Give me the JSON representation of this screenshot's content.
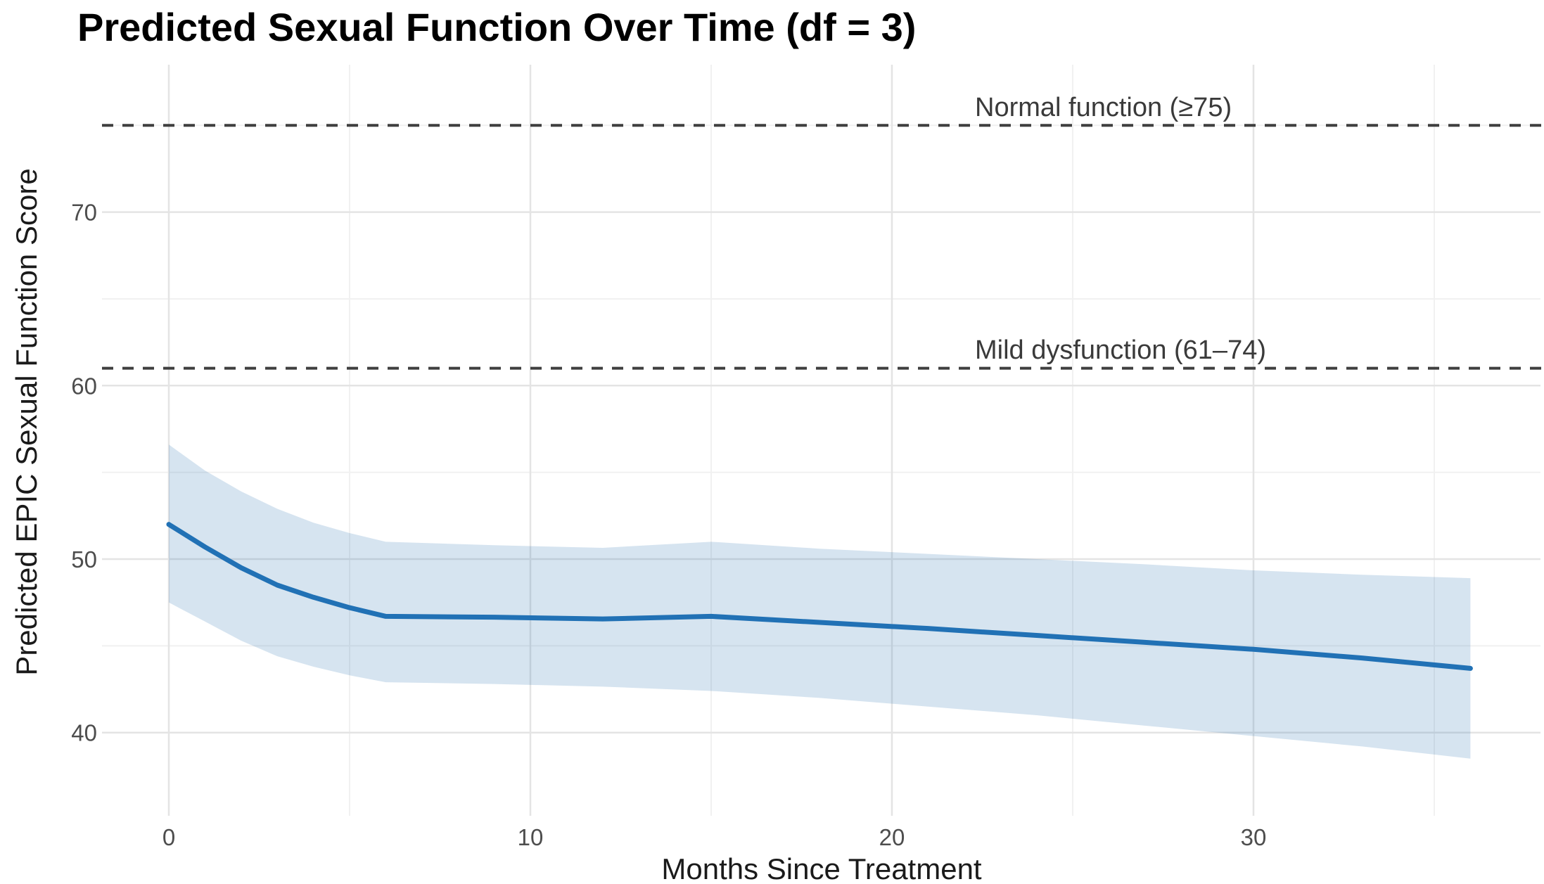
{
  "chart_data": {
    "type": "line",
    "title": "Predicted Sexual Function Over Time (df = 3)",
    "xlabel": "Months Since Treatment",
    "ylabel": "Predicted EPIC Sexual Function Score",
    "x": [
      0,
      1,
      2,
      3,
      4,
      5,
      6,
      9,
      12,
      15,
      18,
      21,
      24,
      27,
      30,
      33,
      36
    ],
    "series": [
      {
        "name": "predicted_score",
        "values": [
          52.0,
          50.7,
          49.5,
          48.5,
          47.8,
          47.2,
          46.7,
          46.65,
          46.55,
          46.7,
          46.35,
          46.0,
          45.6,
          45.2,
          44.8,
          44.3,
          43.7
        ]
      },
      {
        "name": "ci_lower",
        "values": [
          47.5,
          46.4,
          45.3,
          44.4,
          43.8,
          43.3,
          42.9,
          42.8,
          42.65,
          42.4,
          42.0,
          41.5,
          41.0,
          40.4,
          39.8,
          39.2,
          38.5
        ]
      },
      {
        "name": "ci_upper",
        "values": [
          56.6,
          55.1,
          53.9,
          52.9,
          52.1,
          51.5,
          51.0,
          50.8,
          50.65,
          51.0,
          50.6,
          50.3,
          50.0,
          49.7,
          49.35,
          49.1,
          48.9
        ]
      }
    ],
    "reference_lines": [
      {
        "y": 75,
        "label": "Normal function (≥75)"
      },
      {
        "y": 61,
        "label": "Mild dysfunction (61–74)"
      }
    ],
    "x_axis": {
      "ticks": [
        0,
        10,
        20,
        30
      ],
      "minor_ticks": [
        5,
        15,
        25,
        35
      ],
      "range": [
        -1.9,
        37.9
      ]
    },
    "y_axis": {
      "ticks": [
        40,
        50,
        60,
        70
      ],
      "minor_ticks": [
        45,
        55,
        65,
        75
      ],
      "range": [
        35.2,
        78.5
      ]
    },
    "grid": true,
    "legend_position": "none",
    "colors": {
      "line": "#2171b5",
      "ribbon": "#3178b4",
      "reference_line": "#3f3f3f",
      "grid_major": "#e4e4e4",
      "grid_minor": "#f1f1f1",
      "tick_text": "#4d4d4d",
      "annotation_text": "#3a3a3a",
      "title_text": "#000000"
    }
  }
}
